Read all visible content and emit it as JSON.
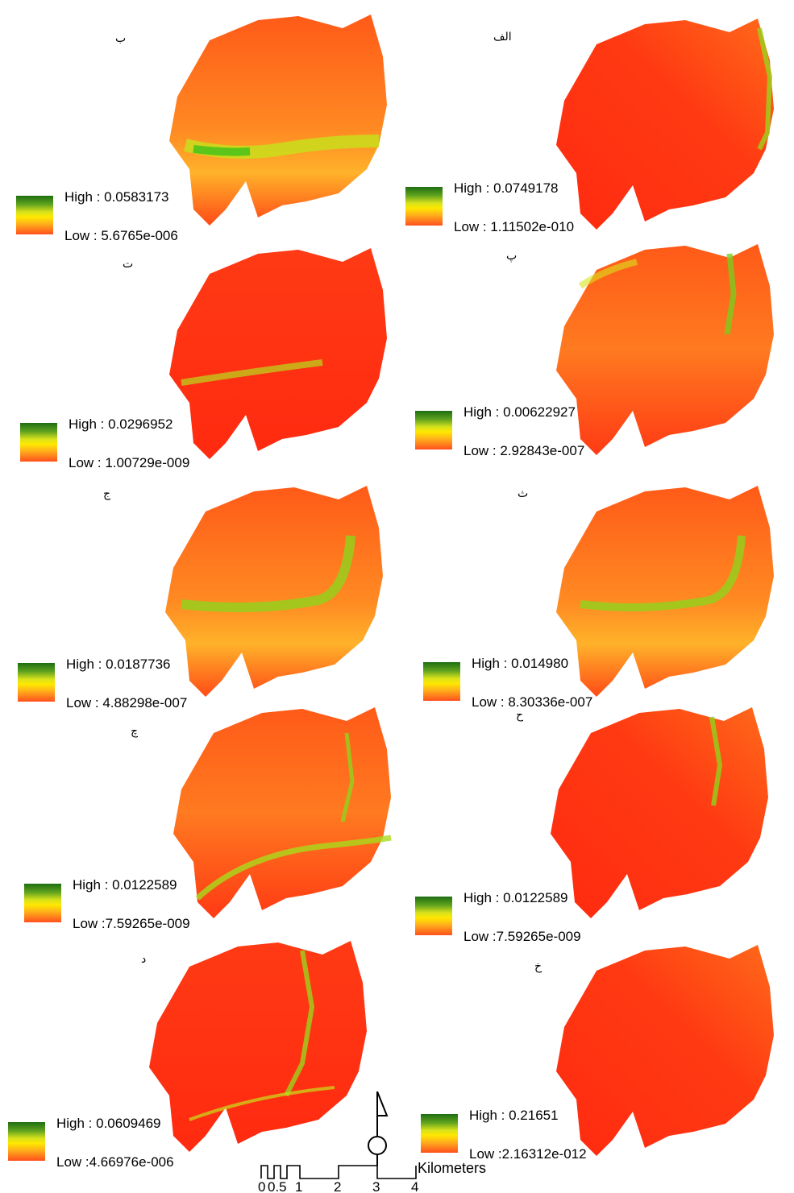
{
  "panels": [
    {
      "letter": "ب",
      "high": "High : 0.0583173",
      "low": "Low : 5.6765e-006"
    },
    {
      "letter": "الف",
      "high": "High : 0.0749178",
      "low": "Low : 1.11502e-010"
    },
    {
      "letter": "ت",
      "high": "High : 0.0296952",
      "low": "Low : 1.00729e-009"
    },
    {
      "letter": "پ",
      "high": "High : 0.00622927",
      "low": "Low : 2.92843e-007"
    },
    {
      "letter": "ج",
      "high": "High : 0.0187736",
      "low": "Low : 4.88298e-007"
    },
    {
      "letter": "ث",
      "high": "High : 0.014980",
      "low": "Low : 8.30336e-007"
    },
    {
      "letter": "چ",
      "high": "High : 0.0122589",
      "low": "Low :7.59265e-009"
    },
    {
      "letter": "ح",
      "high": "High : 0.0122589",
      "low": "Low :7.59265e-009"
    },
    {
      "letter": "د",
      "high": "High : 0.0609469",
      "low": "Low :4.66976e-006"
    },
    {
      "letter": "خ",
      "high": "High : 0.21651",
      "low": "Low :2.16312e-012"
    }
  ],
  "scalebar": {
    "unit": "Kilometers",
    "ticks": [
      "0",
      "0.5",
      "1",
      "2",
      "3",
      "4"
    ]
  },
  "colors": {
    "high": "#1e6e12",
    "mid": "#ffe800",
    "low": "#ff1e0a"
  }
}
